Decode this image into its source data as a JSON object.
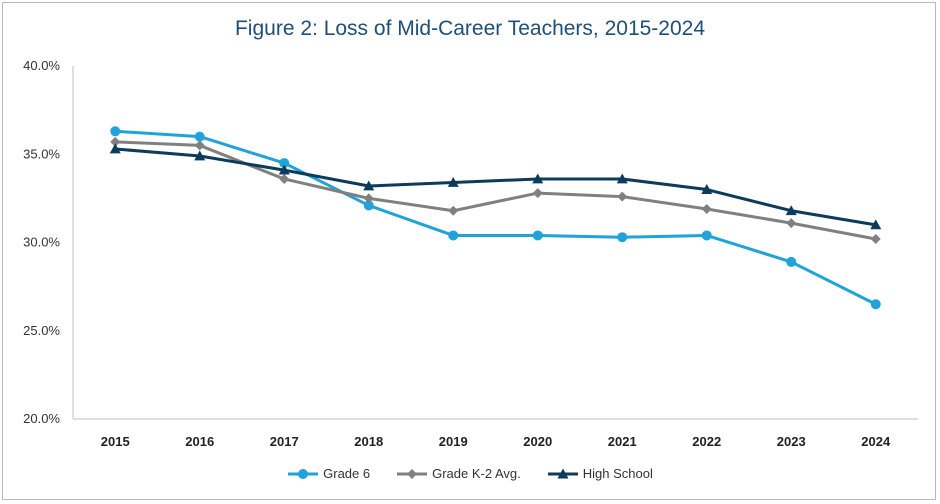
{
  "chart_data": {
    "type": "line",
    "title": "Figure 2: Loss of Mid-Career Teachers, 2015-2024",
    "x": [
      "2015",
      "2016",
      "2017",
      "2018",
      "2019",
      "2020",
      "2021",
      "2022",
      "2023",
      "2024"
    ],
    "yticks": [
      "40.0%",
      "35.0%",
      "30.0%",
      "25.0%",
      "20.0%"
    ],
    "ylim": [
      20,
      40
    ],
    "legend_position": "bottom",
    "series": [
      {
        "name": "Grade 6",
        "color": "#1fa3d9",
        "marker": "circle",
        "values": [
          36.3,
          36.0,
          34.5,
          32.1,
          30.4,
          30.4,
          30.3,
          30.4,
          28.9,
          26.5
        ]
      },
      {
        "name": "Grade K-2 Avg.",
        "color": "#808080",
        "marker": "diamond",
        "values": [
          35.7,
          35.5,
          33.6,
          32.5,
          31.8,
          32.8,
          32.6,
          31.9,
          31.1,
          30.2
        ]
      },
      {
        "name": "High School",
        "color": "#0c3b5c",
        "marker": "triangle",
        "values": [
          35.3,
          34.9,
          34.1,
          33.2,
          33.4,
          33.6,
          33.6,
          33.0,
          31.8,
          31.0
        ]
      }
    ]
  }
}
